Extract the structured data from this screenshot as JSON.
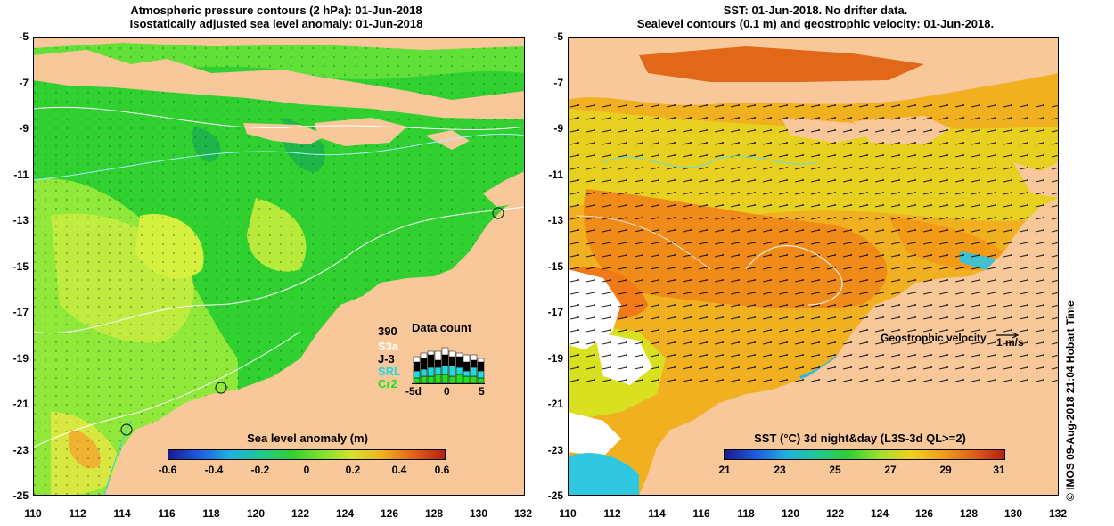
{
  "left_panel": {
    "title_line1": "Atmospheric pressure contours (2 hPa): 01-Jun-2018",
    "title_line2": "Isostatically adjusted sea level anomaly: 01-Jun-2018",
    "y_ticks": [
      "-5",
      "-7",
      "-9",
      "-11",
      "-13",
      "-15",
      "-17",
      "-19",
      "-21",
      "-23",
      "-25"
    ],
    "x_ticks": [
      "110",
      "112",
      "114",
      "116",
      "118",
      "120",
      "122",
      "124",
      "126",
      "128",
      "130",
      "132"
    ],
    "colorbar_title": "Sea level anomaly (m)",
    "colorbar_ticks": [
      "-0.6",
      "-0.4",
      "-0.2",
      "0",
      "0.2",
      "0.4",
      "0.6"
    ],
    "data_count": {
      "title": "Data count",
      "max_label": "390",
      "satellites": [
        {
          "name": "S3a",
          "color": "#ffffff"
        },
        {
          "name": "J-3",
          "color": "#000000"
        },
        {
          "name": "SRL",
          "color": "#20d8e0"
        },
        {
          "name": "Cr2",
          "color": "#20e020"
        }
      ],
      "x_ticks": [
        "-5d",
        "0",
        "5"
      ]
    }
  },
  "right_panel": {
    "title_line1": "SST: 01-Jun-2018. No drifter data.",
    "title_line2": "Sealevel contours (0.1 m) and geostrophic velocity: 01-Jun-2018.",
    "y_ticks": [
      "-5",
      "-7",
      "-9",
      "-11",
      "-13",
      "-15",
      "-17",
      "-19",
      "-21",
      "-23",
      "-25"
    ],
    "x_ticks": [
      "110",
      "112",
      "114",
      "116",
      "118",
      "120",
      "122",
      "124",
      "126",
      "128",
      "130",
      "132"
    ],
    "velocity_label": "Geostrophic velocity",
    "velocity_scale": "1 m/s",
    "colorbar_title": "SST (°C) 3d night&day (L3S-3d QL>=2)",
    "colorbar_ticks": [
      "21",
      "23",
      "25",
      "27",
      "29",
      "31"
    ]
  },
  "credit": "© IMOS 09-Aug-2018 21:04 Hobart Time",
  "colors": {
    "land": "#f9c89a",
    "ocean_green": "#2fd42f",
    "sst_orange": "#f59a1a"
  }
}
